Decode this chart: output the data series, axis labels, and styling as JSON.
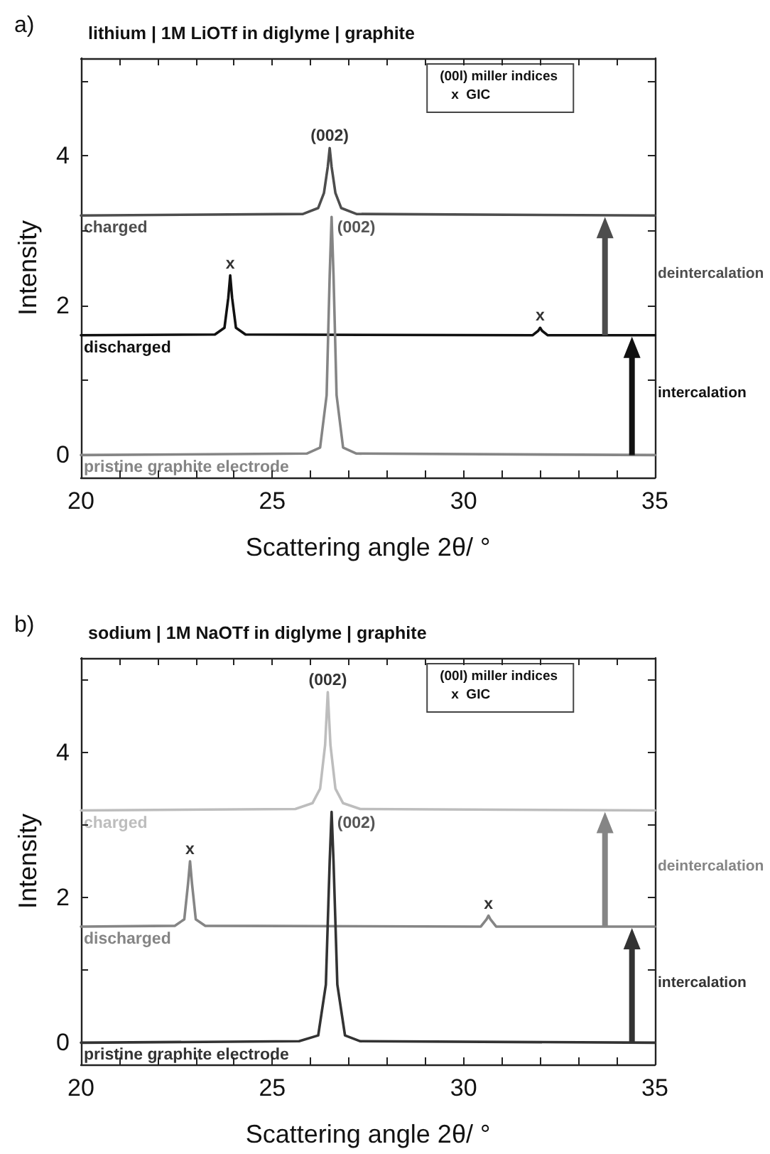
{
  "chart_data": [
    {
      "type": "line",
      "title": "lithium | 1M LiOTf in diglyme | graphite",
      "xlabel": "Scattering angle 2θ/ °",
      "ylabel": "Intensity",
      "xlim": [
        20,
        35
      ],
      "ylim": [
        -0.3,
        5.3
      ],
      "xticks": [
        20,
        {
          "value": 21,
          "label": null
        },
        {
          "value": 22,
          "label": null
        },
        {
          "value": 23,
          "label": null
        },
        {
          "value": 24,
          "label": null
        },
        25,
        {
          "value": 26,
          "label": null
        },
        {
          "value": 27,
          "label": null
        },
        {
          "value": 28,
          "label": null
        },
        {
          "value": 29,
          "label": null
        },
        30,
        {
          "value": 31,
          "label": null
        },
        {
          "value": 32,
          "label": null
        },
        {
          "value": 33,
          "label": null
        },
        {
          "value": 34,
          "label": null
        },
        35
      ],
      "yticks": [
        0,
        {
          "value": 1,
          "label": null
        },
        2,
        {
          "value": 3,
          "label": null
        },
        4,
        {
          "value": 5,
          "label": null
        }
      ],
      "series": [
        {
          "name": "charged",
          "color": "#4d4d4d",
          "x": [
            20,
            25.8,
            26.2,
            26.35,
            26.45,
            26.5,
            26.55,
            26.65,
            26.8,
            27.2,
            35
          ],
          "values": [
            3.2,
            3.22,
            3.3,
            3.5,
            3.85,
            4.1,
            3.85,
            3.5,
            3.3,
            3.22,
            3.2
          ]
        },
        {
          "name": "discharged",
          "color": "#111111",
          "x": [
            20,
            23.5,
            23.75,
            23.85,
            23.9,
            23.95,
            24.05,
            24.3,
            31.8,
            31.95,
            32.0,
            32.05,
            32.2,
            35
          ],
          "values": [
            1.6,
            1.61,
            1.7,
            2.1,
            2.4,
            2.1,
            1.7,
            1.61,
            1.6,
            1.66,
            1.7,
            1.66,
            1.6,
            1.6
          ]
        },
        {
          "name": "pristine graphite electrode",
          "color": "#858585",
          "x": [
            20,
            25.9,
            26.25,
            26.42,
            26.5,
            26.55,
            26.6,
            26.68,
            26.85,
            27.2,
            35
          ],
          "values": [
            0,
            0.02,
            0.1,
            0.8,
            2.4,
            3.18,
            2.4,
            0.8,
            0.1,
            0.02,
            0
          ]
        }
      ],
      "annotations": [
        {
          "text": "(002)",
          "x": 26.5,
          "y": 4.1
        },
        {
          "text": "(002)",
          "x": 26.55,
          "y": 3.18
        },
        {
          "text": "x",
          "x": 23.9,
          "y": 2.4
        },
        {
          "text": "x",
          "x": 32.0,
          "y": 1.7
        },
        "(00l) miller indices",
        "x  GIC",
        "deintercalation",
        "intercalation",
        "a)"
      ]
    },
    {
      "type": "line",
      "title": "sodium | 1M NaOTf in diglyme | graphite",
      "xlabel": "Scattering angle 2θ/ °",
      "ylabel": "Intensity",
      "xlim": [
        20,
        35
      ],
      "ylim": [
        -0.3,
        5.3
      ],
      "xticks": [
        20,
        {
          "value": 21,
          "label": null
        },
        {
          "value": 22,
          "label": null
        },
        {
          "value": 23,
          "label": null
        },
        {
          "value": 24,
          "label": null
        },
        25,
        {
          "value": 26,
          "label": null
        },
        {
          "value": 27,
          "label": null
        },
        {
          "value": 28,
          "label": null
        },
        {
          "value": 29,
          "label": null
        },
        30,
        {
          "value": 31,
          "label": null
        },
        {
          "value": 32,
          "label": null
        },
        {
          "value": 33,
          "label": null
        },
        {
          "value": 34,
          "label": null
        },
        35
      ],
      "yticks": [
        0,
        {
          "value": 1,
          "label": null
        },
        2,
        {
          "value": 3,
          "label": null
        },
        4,
        {
          "value": 5,
          "label": null
        }
      ],
      "series": [
        {
          "name": "charged",
          "color": "#bdbdbd",
          "x": [
            20,
            25.6,
            26.05,
            26.25,
            26.38,
            26.45,
            26.52,
            26.65,
            26.85,
            27.3,
            35
          ],
          "values": [
            3.2,
            3.22,
            3.3,
            3.5,
            4.1,
            4.83,
            4.1,
            3.5,
            3.3,
            3.22,
            3.2
          ]
        },
        {
          "name": "discharged",
          "color": "#858585",
          "x": [
            20,
            22.45,
            22.7,
            22.8,
            22.85,
            22.9,
            23.0,
            23.25,
            30.45,
            30.6,
            30.65,
            30.7,
            30.85,
            35
          ],
          "values": [
            1.6,
            1.61,
            1.7,
            2.2,
            2.5,
            2.2,
            1.7,
            1.61,
            1.6,
            1.7,
            1.75,
            1.7,
            1.6,
            1.6
          ]
        },
        {
          "name": "pristine graphite electrode",
          "color": "#333333",
          "x": [
            20,
            25.7,
            26.2,
            26.4,
            26.5,
            26.55,
            26.6,
            26.7,
            26.9,
            27.3,
            35
          ],
          "values": [
            0,
            0.02,
            0.1,
            0.8,
            2.5,
            3.18,
            2.5,
            0.8,
            0.1,
            0.02,
            0
          ]
        }
      ],
      "annotations": [
        {
          "text": "(002)",
          "x": 26.45,
          "y": 4.83
        },
        {
          "text": "(002)",
          "x": 26.55,
          "y": 3.18
        },
        {
          "text": "x",
          "x": 22.85,
          "y": 2.5
        },
        {
          "text": "x",
          "x": 30.65,
          "y": 1.75
        },
        "(00l) miller indices",
        "x  GIC",
        "deintercalation",
        "intercalation",
        "b)"
      ]
    }
  ]
}
